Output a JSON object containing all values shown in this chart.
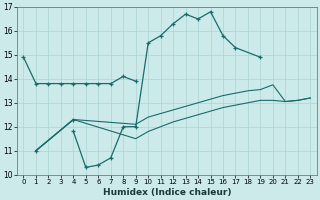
{
  "title": "",
  "xlabel": "Humidex (Indice chaleur)",
  "bg_color": "#cceaea",
  "grid_color": "#aad4d4",
  "line_color": "#1a6b6b",
  "xlim": [
    -0.5,
    23.5
  ],
  "ylim": [
    10,
    17
  ],
  "xticks": [
    0,
    1,
    2,
    3,
    4,
    5,
    6,
    7,
    8,
    9,
    10,
    11,
    12,
    13,
    14,
    15,
    16,
    17,
    18,
    19,
    20,
    21,
    22,
    23
  ],
  "yticks": [
    10,
    11,
    12,
    13,
    14,
    15,
    16,
    17
  ],
  "series_main": {
    "x": [
      0,
      1,
      2,
      3,
      4,
      5,
      6,
      7,
      8,
      9
    ],
    "y": [
      14.9,
      13.8,
      13.8,
      13.8,
      13.8,
      13.8,
      13.8,
      13.8,
      14.1,
      13.9
    ]
  },
  "series_peak": {
    "x": [
      4,
      5,
      6,
      7,
      8,
      9,
      10,
      11,
      12,
      13,
      14,
      15,
      16,
      17,
      19
    ],
    "y": [
      11.8,
      10.3,
      10.4,
      10.7,
      12.0,
      12.0,
      15.5,
      15.8,
      16.3,
      16.7,
      16.5,
      16.8,
      15.8,
      15.3,
      14.9
    ]
  },
  "series_scatter": {
    "x": [
      1,
      4
    ],
    "y": [
      11.0,
      12.3
    ]
  },
  "series_trend1": {
    "x": [
      1,
      4,
      9,
      10,
      11,
      12,
      13,
      14,
      15,
      16,
      17,
      18,
      19,
      20,
      21,
      22,
      23
    ],
    "y": [
      11.0,
      12.3,
      11.5,
      11.8,
      12.0,
      12.2,
      12.35,
      12.5,
      12.65,
      12.8,
      12.9,
      13.0,
      13.1,
      13.1,
      13.05,
      13.1,
      13.2
    ]
  },
  "series_trend2": {
    "x": [
      1,
      4,
      9,
      10,
      11,
      12,
      13,
      14,
      15,
      16,
      17,
      18,
      19,
      20,
      21,
      22,
      23
    ],
    "y": [
      11.0,
      12.3,
      12.1,
      12.4,
      12.55,
      12.7,
      12.85,
      13.0,
      13.15,
      13.3,
      13.4,
      13.5,
      13.55,
      13.75,
      13.05,
      13.1,
      13.2
    ]
  }
}
